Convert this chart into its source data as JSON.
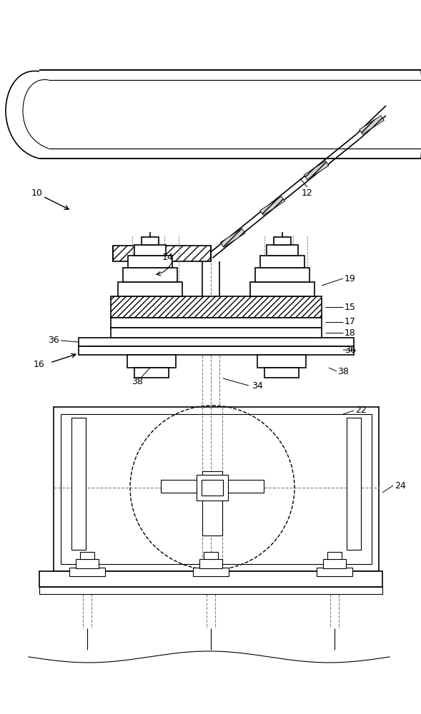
{
  "bg_color": "#ffffff",
  "fig_width": 5.89,
  "fig_height": 10.0,
  "dpi": 100
}
